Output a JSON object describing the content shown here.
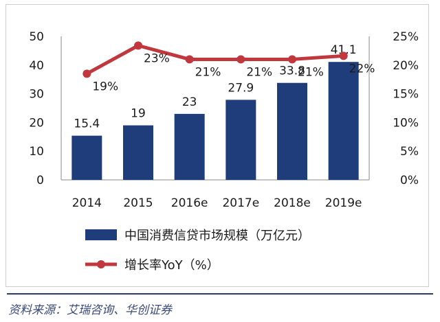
{
  "chart_data": {
    "type": "bar",
    "categories": [
      "2014",
      "2015",
      "2016e",
      "2017e",
      "2018e",
      "2019e"
    ],
    "series": [
      {
        "name": "中国消费信贷市场规模（万亿元）",
        "type": "bar",
        "axis": "left",
        "color": "#1f3d7a",
        "values": [
          15.4,
          19,
          23,
          27.9,
          33.8,
          41.1
        ],
        "labels": [
          "15.4",
          "19",
          "23",
          "27.9",
          "33.8",
          "41.1"
        ]
      },
      {
        "name": "增长率YoY（%）",
        "type": "line",
        "axis": "right",
        "color": "#c0383e",
        "values": [
          18.5,
          23.4,
          21,
          21,
          21,
          21.6
        ],
        "labels": [
          "19%",
          "23%",
          "21%",
          "21%",
          "21%",
          "22%"
        ]
      }
    ],
    "y_left": {
      "min": 0,
      "max": 50,
      "ticks": [
        "0",
        "10",
        "20",
        "30",
        "40",
        "50"
      ]
    },
    "y_right": {
      "min": 0,
      "max": 25,
      "ticks": [
        "0%",
        "5%",
        "10%",
        "15%",
        "20%",
        "25%"
      ]
    },
    "grid": false,
    "legend": "bottom"
  },
  "source": "资料来源：艾瑞咨询、华创证券"
}
